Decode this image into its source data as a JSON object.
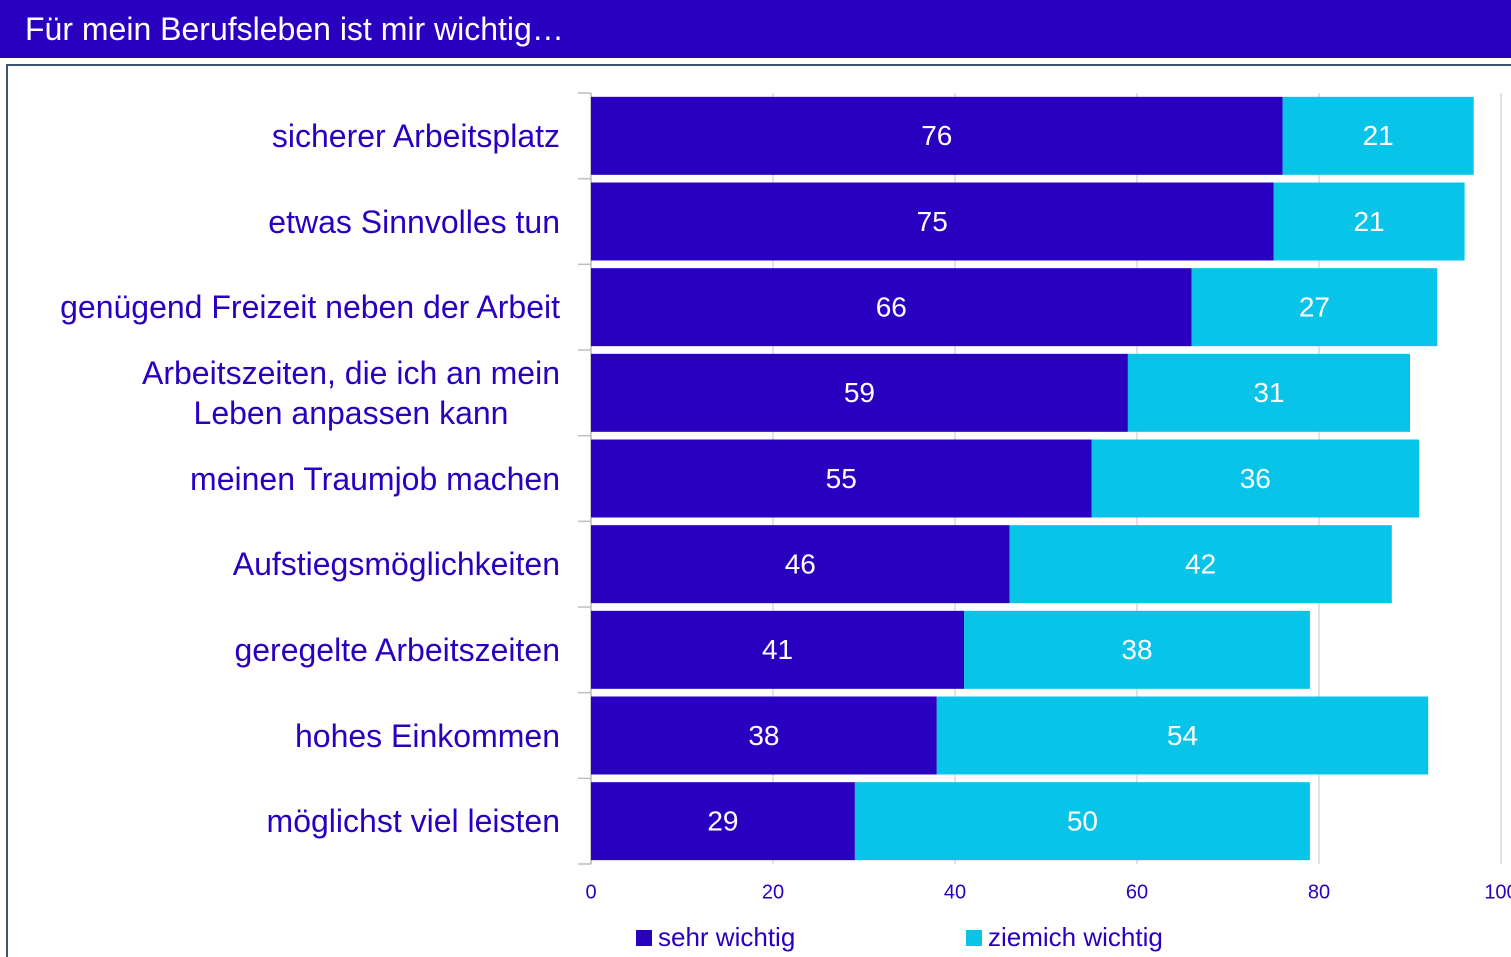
{
  "chart_data": {
    "type": "stacked-bar-horizontal",
    "title": "Für mein Berufsleben ist mir wichtig…",
    "categories": [
      "sicherer Arbeitsplatz",
      "etwas Sinnvolles tun",
      "genügend Freizeit neben der Arbeit",
      "Arbeitszeiten, die ich an mein\nLeben anpassen kann",
      "meinen Traumjob machen",
      "Aufstiegsmöglichkeiten",
      "geregelte Arbeitszeiten",
      "hohes Einkommen",
      "möglichst viel leisten"
    ],
    "series": [
      {
        "name": "sehr wichtig",
        "color": "#2a00c0",
        "values": [
          76,
          75,
          66,
          59,
          55,
          46,
          41,
          38,
          29
        ]
      },
      {
        "name": "ziemich wichtig",
        "color": "#08c4e8",
        "values": [
          21,
          21,
          27,
          31,
          36,
          42,
          38,
          54,
          50
        ]
      }
    ],
    "xlim": [
      0,
      100
    ],
    "xticks": [
      0,
      20,
      40,
      60,
      80,
      100
    ],
    "grid": true,
    "legend": "bottom"
  }
}
